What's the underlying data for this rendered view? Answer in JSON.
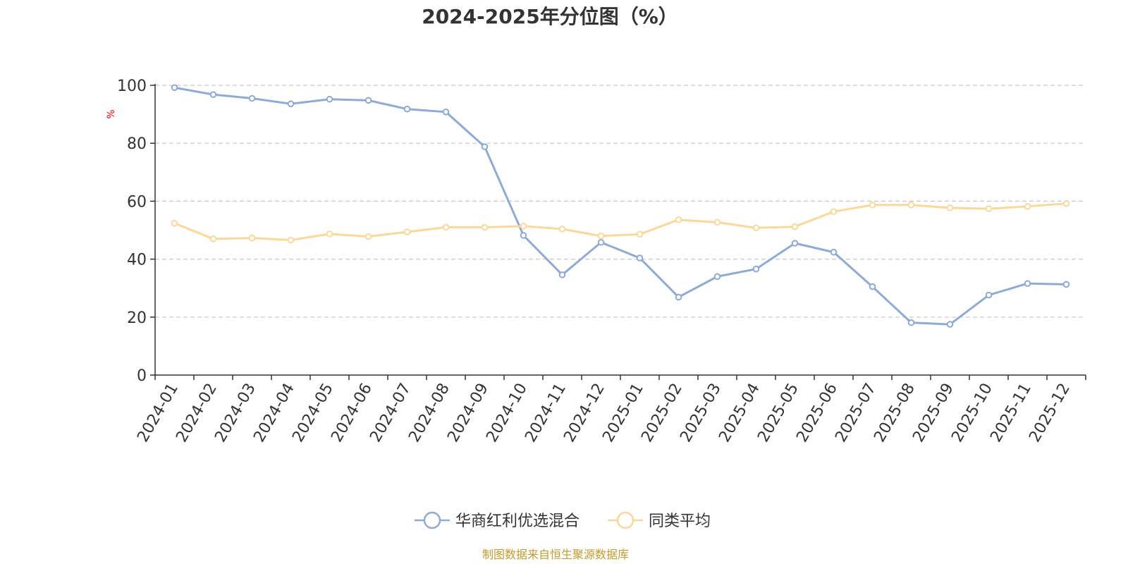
{
  "chart_data": {
    "type": "line",
    "title": "2024-2025年分位图（%）",
    "ylabel": "%",
    "xlabel": "",
    "ylim": [
      0,
      100
    ],
    "yticks": [
      0,
      20,
      40,
      60,
      80,
      100
    ],
    "grid": true,
    "legend_position": "bottom-center",
    "categories": [
      "2024-01",
      "2024-02",
      "2024-03",
      "2024-04",
      "2024-05",
      "2024-06",
      "2024-07",
      "2024-08",
      "2024-09",
      "2024-10",
      "2024-11",
      "2024-12",
      "2025-01",
      "2025-02",
      "2025-03",
      "2025-04",
      "2025-05",
      "2025-06",
      "2025-07",
      "2025-08",
      "2025-09",
      "2025-10",
      "2025-11",
      "2025-12"
    ],
    "series": [
      {
        "name": "华商红利优选混合",
        "color": "#8eabd8",
        "values": [
          99.2,
          96.8,
          95.5,
          93.6,
          95.2,
          94.8,
          91.8,
          90.8,
          78.8,
          48.2,
          34.6,
          45.8,
          40.4,
          26.9,
          34.0,
          36.6,
          45.5,
          42.4,
          30.5,
          18.1,
          17.5,
          27.6,
          31.6,
          31.3
        ]
      },
      {
        "name": "同类平均",
        "color": "#fbd89a",
        "values": [
          52.4,
          47.0,
          47.3,
          46.6,
          48.7,
          47.8,
          49.4,
          51.0,
          51.0,
          51.4,
          50.4,
          48.0,
          48.6,
          53.6,
          52.7,
          50.8,
          51.2,
          56.4,
          58.7,
          58.7,
          57.7,
          57.4,
          58.2,
          59.2
        ]
      }
    ],
    "source": "制图数据来自恒生聚源数据库"
  }
}
